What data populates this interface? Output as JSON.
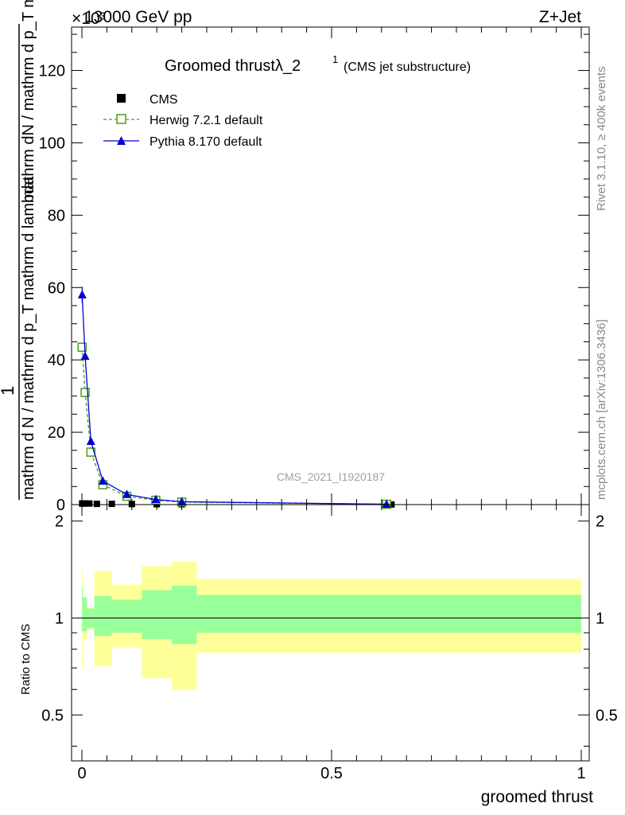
{
  "header": {
    "left": "13000 GeV pp",
    "right": "Z+Jet",
    "exponent": "×10³"
  },
  "side_labels": {
    "rivet": "Rivet 3.1.10, ≥ 400k events",
    "mcplots": "mcplots.cern.ch [arXiv:1306.3436]"
  },
  "chart_data": {
    "type": "line",
    "title": "Groomed thrustλ_2",
    "title_sup": "1",
    "subtitle": "(CMS jet substructure)",
    "watermark": "CMS_2021_I1920187",
    "ylabel_top": "mathrm dN / mathrm d p_T mathrm d lambda",
    "ylabel_numerator": "1",
    "ylabel_denominator": "mathrm d N / mathrm d p_T mathrm d lambda",
    "xlabel": "groomed thrust",
    "xlim": [
      0,
      1
    ],
    "ylim": [
      0,
      132
    ],
    "y_ticks": [
      "0",
      "20",
      "40",
      "60",
      "80",
      "100",
      "120"
    ],
    "x_ticks": [
      "0",
      "0.5",
      "1"
    ],
    "legend": [
      {
        "name": "CMS",
        "marker": "square",
        "color": "#000000"
      },
      {
        "name": "Herwig 7.2.1 default",
        "marker": "open-square",
        "color": "#4b9b1e"
      },
      {
        "name": "Pythia 8.170 default",
        "marker": "triangle",
        "color": "#0000d6"
      }
    ],
    "series": [
      {
        "name": "CMS",
        "x": [
          0.0005,
          0.0015,
          0.0035,
          0.007,
          0.015,
          0.03,
          0.06,
          0.1,
          0.15,
          0.2,
          0.62
        ],
        "y": [
          0.3,
          0.3,
          0.3,
          0.3,
          0.3,
          0.2,
          0.2,
          0.15,
          0.1,
          0.08,
          0.03
        ]
      },
      {
        "name": "Herwig 7.2.1 default",
        "x": [
          0.0005,
          0.0065,
          0.018,
          0.042,
          0.09,
          0.148,
          0.2,
          0.61
        ],
        "y": [
          43.5,
          31,
          14.5,
          5.5,
          2.3,
          1.2,
          0.7,
          0.1
        ]
      },
      {
        "name": "Pythia 8.170 default",
        "x": [
          0.0005,
          0.0065,
          0.018,
          0.042,
          0.09,
          0.148,
          0.2,
          0.61
        ],
        "y": [
          58,
          41,
          17.5,
          6.5,
          2.8,
          1.4,
          0.8,
          0.1
        ]
      }
    ],
    "ratio": {
      "ylabel": "Ratio to CMS",
      "ylim": [
        0.36,
        2.25
      ],
      "y_ticks": [
        "0.5",
        "1",
        "2"
      ],
      "bins": [
        {
          "x": [
            0.0,
            0.002
          ],
          "inner": [
            0.9,
            1.25
          ],
          "outer": [
            0.7,
            1.42
          ]
        },
        {
          "x": [
            0.002,
            0.01
          ],
          "inner": [
            0.91,
            1.16
          ],
          "outer": [
            0.86,
            1.12
          ]
        },
        {
          "x": [
            0.01,
            0.025
          ],
          "inner": [
            0.93,
            1.07
          ],
          "outer": [
            0.92,
            1.08
          ]
        },
        {
          "x": [
            0.025,
            0.06
          ],
          "inner": [
            0.88,
            1.17
          ],
          "outer": [
            0.71,
            1.4
          ]
        },
        {
          "x": [
            0.06,
            0.12
          ],
          "inner": [
            0.9,
            1.14
          ],
          "outer": [
            0.81,
            1.27
          ]
        },
        {
          "x": [
            0.12,
            0.18
          ],
          "inner": [
            0.86,
            1.22
          ],
          "outer": [
            0.65,
            1.45
          ]
        },
        {
          "x": [
            0.18,
            0.23
          ],
          "inner": [
            0.83,
            1.26
          ],
          "outer": [
            0.6,
            1.5
          ]
        },
        {
          "x": [
            0.23,
            1.0
          ],
          "inner": [
            0.9,
            1.18
          ],
          "outer": [
            0.78,
            1.32
          ]
        }
      ]
    }
  }
}
